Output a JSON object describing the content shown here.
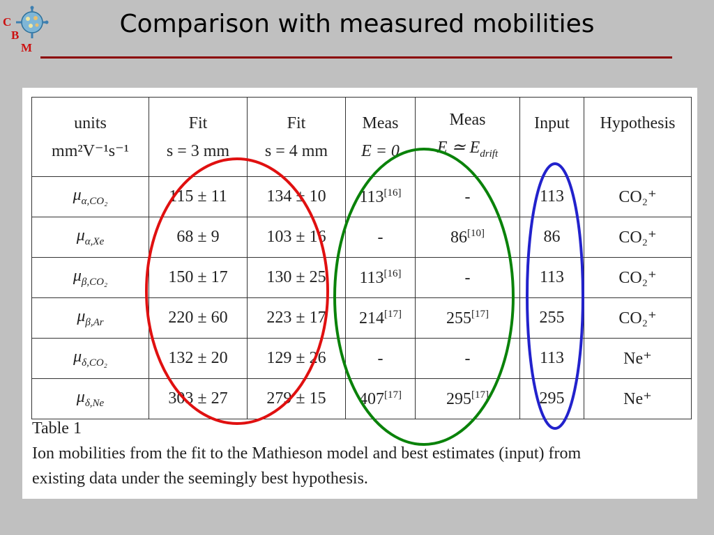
{
  "logo": {
    "letters": [
      "C",
      "B",
      "M"
    ]
  },
  "title": "Comparison with measured mobilities",
  "table": {
    "header": [
      {
        "top": "units",
        "bottom": "mm²V⁻¹s⁻¹"
      },
      {
        "top": "Fit",
        "bottom": "s = 3 mm"
      },
      {
        "top": "Fit",
        "bottom": "s = 4 mm"
      },
      {
        "top": "Meas",
        "bottom": "E = 0"
      },
      {
        "top": "Meas",
        "bottom": "E ≃ E",
        "bottom_sub": "drift"
      },
      {
        "top": "Input",
        "bottom": ""
      },
      {
        "top": "Hypothesis",
        "bottom": ""
      }
    ],
    "rows": [
      {
        "sym": "μ",
        "sub": "α,CO₂",
        "fit3": "115 ± 11",
        "fit4": "134 ± 10",
        "meas0": "113",
        "meas0_ref": "[16]",
        "measd": "-",
        "measd_ref": "",
        "input": "113",
        "hyp": "CO₂⁺"
      },
      {
        "sym": "μ",
        "sub": "α,Xe",
        "fit3": "68 ± 9",
        "fit4": "103 ± 16",
        "meas0": "-",
        "meas0_ref": "",
        "measd": "86",
        "measd_ref": "[10]",
        "input": "86",
        "hyp": "CO₂⁺"
      },
      {
        "sym": "μ",
        "sub": "β,CO₂",
        "fit3": "150 ± 17",
        "fit4": "130 ± 25",
        "meas0": "113",
        "meas0_ref": "[16]",
        "measd": "-",
        "measd_ref": "",
        "input": "113",
        "hyp": "CO₂⁺"
      },
      {
        "sym": "μ",
        "sub": "β,Ar",
        "fit3": "220 ± 60",
        "fit4": "223 ± 17",
        "meas0": "214",
        "meas0_ref": "[17]",
        "measd": "255",
        "measd_ref": "[17]",
        "input": "255",
        "hyp": "CO₂⁺"
      },
      {
        "sym": "μ",
        "sub": "δ,CO₂",
        "fit3": "132 ± 20",
        "fit4": "129 ± 26",
        "meas0": "-",
        "meas0_ref": "",
        "measd": "-",
        "measd_ref": "",
        "input": "113",
        "hyp": "Ne⁺"
      },
      {
        "sym": "μ",
        "sub": "δ,Ne",
        "fit3": "303 ± 27",
        "fit4": "279 ± 15",
        "meas0": "407",
        "meas0_ref": "[17]",
        "measd": "295",
        "measd_ref": "[17]",
        "input": "295",
        "hyp": "Ne⁺"
      }
    ]
  },
  "caption": {
    "label": "Table 1",
    "line1": "Ion mobilities from the fit to the Mathieson model and best estimates (input) from",
    "line2": "existing data under the seemingly best hypothesis."
  },
  "colors": {
    "title_rule": "#8b0000",
    "oval_fit": "#e01010",
    "oval_meas": "#0a820a",
    "oval_input": "#2222cc",
    "logo_letters": "#cc1111"
  }
}
